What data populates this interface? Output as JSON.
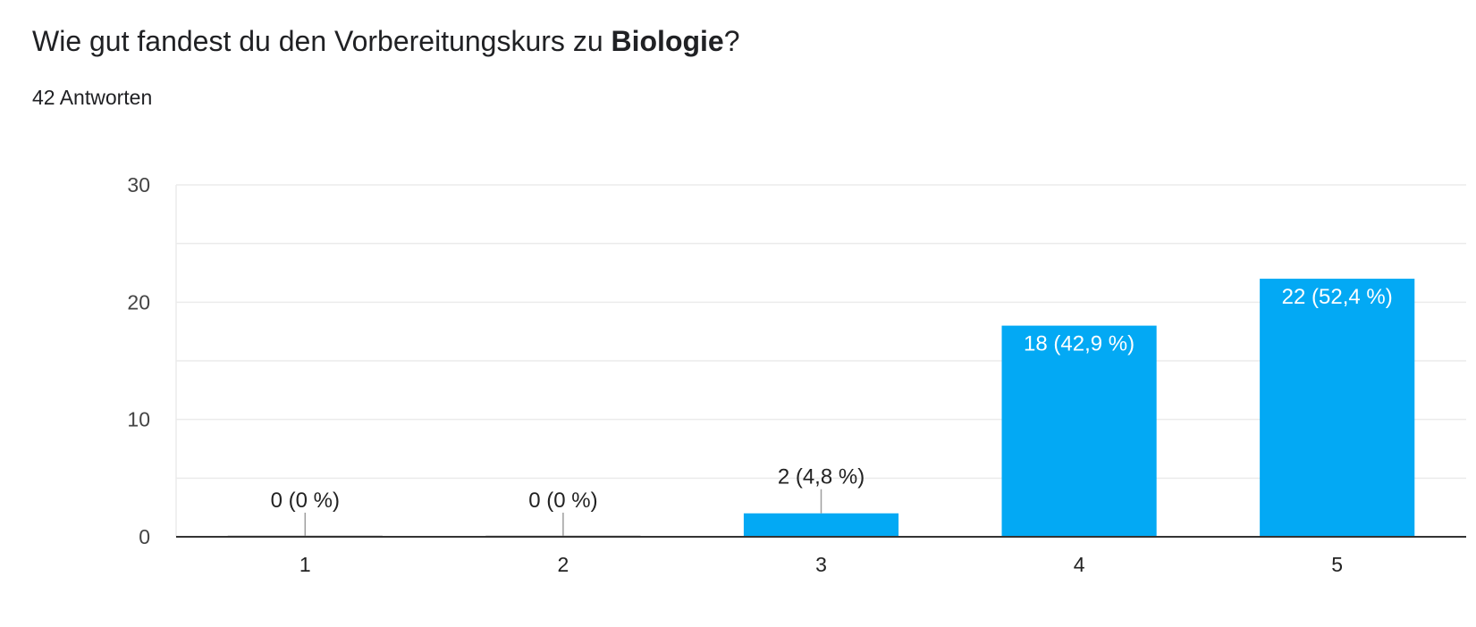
{
  "header": {
    "title_prefix": "Wie gut fandest du den Vorbereitungskurs zu ",
    "title_bold": "Biologie",
    "title_suffix": "?",
    "responses": "42 Antworten"
  },
  "colors": {
    "bar": "#03a9f4",
    "grid": "#ebebeb",
    "axis": "#333333",
    "label_inside": "#ffffff",
    "label_outside": "#222222",
    "leader": "#9e9e9e"
  },
  "chart_data": {
    "type": "bar",
    "categories": [
      "1",
      "2",
      "3",
      "4",
      "5"
    ],
    "values": [
      0,
      0,
      2,
      18,
      22
    ],
    "data_labels": [
      "0 (0 %)",
      "0 (0 %)",
      "2 (4,8 %)",
      "18 (42,9 %)",
      "22 (52,4 %)"
    ],
    "y_ticks": [
      0,
      10,
      20,
      30
    ],
    "ylim": [
      0,
      30
    ],
    "title": "Wie gut fandest du den Vorbereitungskurs zu Biologie?",
    "xlabel": "",
    "ylabel": "",
    "grid": true,
    "legend": "none"
  }
}
